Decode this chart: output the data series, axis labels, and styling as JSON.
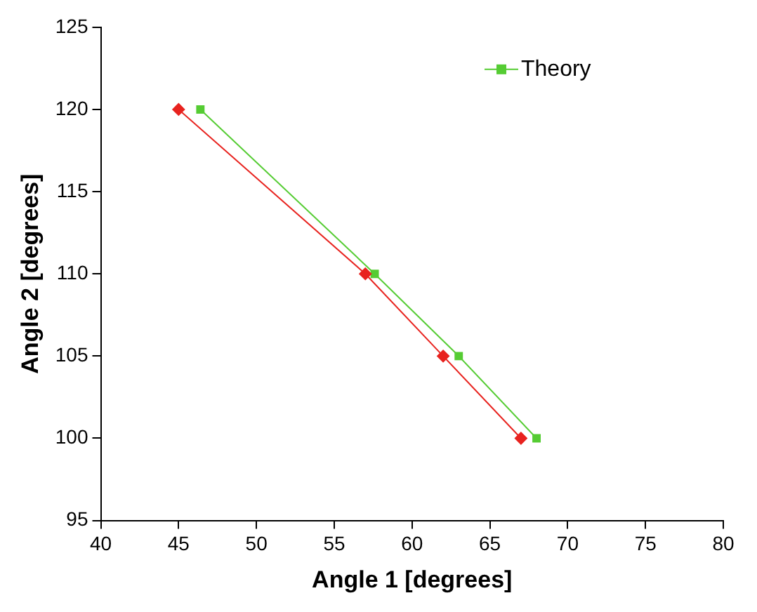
{
  "chart_data": {
    "type": "line",
    "xlabel": "Angle 1 [degrees]",
    "ylabel": "Angle 2 [degrees]",
    "series": [
      {
        "color": "#e8231f",
        "marker": "diamond",
        "x": [
          45,
          57,
          62,
          67
        ],
        "values": [
          120,
          110,
          105,
          100
        ]
      },
      {
        "name": "Theory",
        "color": "#55cc33",
        "marker": "square",
        "x": [
          46.4,
          57.6,
          63,
          68
        ],
        "values": [
          120,
          110,
          105,
          100
        ]
      }
    ],
    "xlim": [
      40,
      80
    ],
    "xticks": [
      40,
      45,
      50,
      55,
      60,
      65,
      70,
      75,
      80
    ],
    "ylim": [
      95,
      125
    ],
    "yticks": [
      95,
      100,
      105,
      110,
      115,
      120,
      125
    ],
    "grid": false,
    "legend": "top right"
  }
}
